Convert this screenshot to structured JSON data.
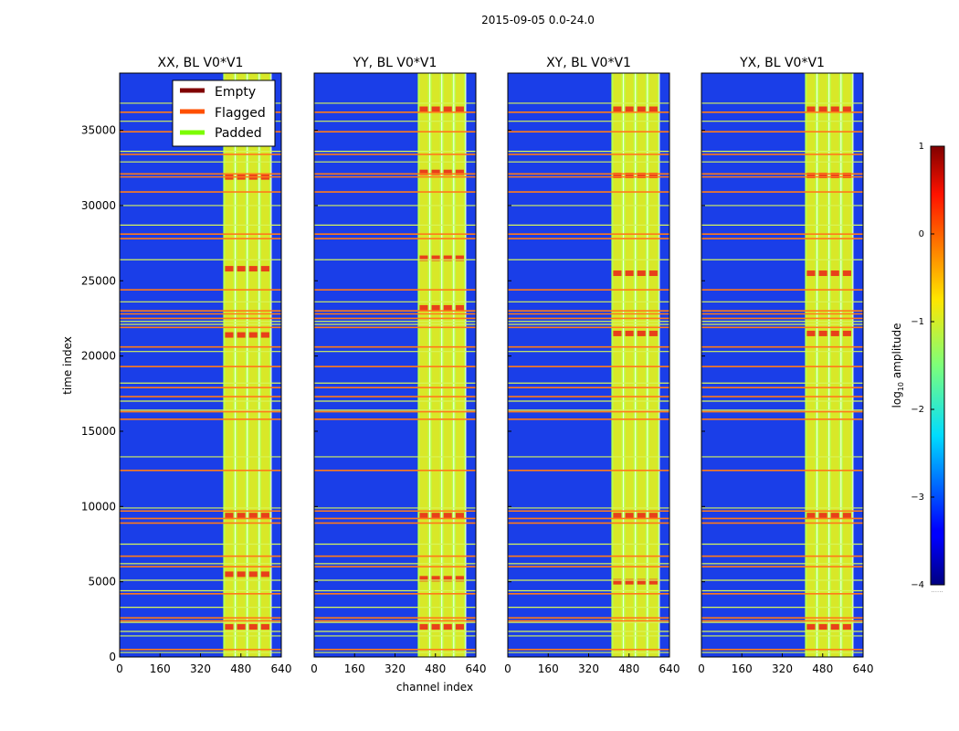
{
  "figure": {
    "suptitle": "2015-09-05 0.0-24.0",
    "xlabel": "channel index",
    "ylabel": "time index"
  },
  "legend": {
    "location": "top-right of first panel",
    "entries": [
      {
        "label": "Empty",
        "color": "#800000"
      },
      {
        "label": "Flagged",
        "color": "#ff5000"
      },
      {
        "label": "Padded",
        "color": "#7cfc00"
      }
    ]
  },
  "colorbar": {
    "label_prefix": "log",
    "label_sub": "10",
    "label_suffix": " amplitude",
    "min": -4,
    "max": 1,
    "ticks": [
      1,
      0,
      -1,
      -2,
      -3,
      -4
    ],
    "tick_labels": [
      "1",
      "0",
      "−1",
      "−2",
      "−3",
      "−4"
    ],
    "colormap": "jet",
    "under_text": "......"
  },
  "colors": {
    "background": "#1a3ee8",
    "band": "#b8ff4a",
    "band_hot": "#ffcc00",
    "flag": "#ff7a1a",
    "pad": "#d7f55a",
    "empty": "#8a1a10"
  },
  "chart_data": [
    {
      "type": "heatmap",
      "title": "XX, BL V0*V1",
      "xlabel": "",
      "ylabel": "time index",
      "xlim": [
        0,
        640
      ],
      "ylim": [
        0,
        38800
      ],
      "xticks": [
        0,
        160,
        320,
        480,
        640
      ],
      "yticks": [
        0,
        5000,
        10000,
        15000,
        20000,
        25000,
        30000,
        35000
      ],
      "show_ytick_labels": true,
      "signal_band": [
        410,
        600
      ],
      "flagged_rows": [
        500,
        2400,
        2600,
        4200,
        6000,
        6700,
        8900,
        9200,
        9700,
        12400,
        15800,
        16300,
        17300,
        17900,
        19300,
        20600,
        21900,
        22500,
        22800,
        23000,
        24400,
        27800,
        28100,
        30900,
        31900,
        32100,
        33400,
        34900,
        36200
      ],
      "padded_rows": [
        300,
        1400,
        1700,
        2300,
        3300,
        4400,
        5100,
        6200,
        7500,
        9900,
        13300,
        16400,
        17000,
        18200,
        20300,
        22100,
        22300,
        23600,
        26400,
        28700,
        30000,
        32900,
        33600,
        35600,
        36800
      ],
      "hot_rows": [
        2000,
        5500,
        9400,
        21400,
        25800,
        31900
      ]
    },
    {
      "type": "heatmap",
      "title": "YY, BL V0*V1",
      "xlabel": "channel index",
      "ylabel": "",
      "xlim": [
        0,
        640
      ],
      "ylim": [
        0,
        38800
      ],
      "xticks": [
        0,
        160,
        320,
        480,
        640
      ],
      "yticks": [
        0,
        5000,
        10000,
        15000,
        20000,
        25000,
        30000,
        35000
      ],
      "show_ytick_labels": false,
      "signal_band": [
        410,
        600
      ],
      "flagged_rows": [
        500,
        2400,
        2600,
        4200,
        6000,
        6700,
        8900,
        9200,
        9700,
        12400,
        15800,
        16300,
        17300,
        17900,
        19300,
        20600,
        21900,
        22500,
        22800,
        23000,
        24400,
        27800,
        28100,
        30900,
        31900,
        32100,
        33400,
        34900,
        36200
      ],
      "padded_rows": [
        300,
        1400,
        1700,
        2300,
        3300,
        4400,
        5100,
        6200,
        7500,
        9900,
        13300,
        16400,
        17000,
        18200,
        20300,
        22100,
        22300,
        23600,
        26400,
        28700,
        30000,
        32900,
        33600,
        35600,
        36800
      ],
      "hot_rows": [
        2000,
        5200,
        9400,
        23200,
        26500,
        32200,
        36400
      ]
    },
    {
      "type": "heatmap",
      "title": "XY, BL V0*V1",
      "xlabel": "",
      "ylabel": "",
      "xlim": [
        0,
        640
      ],
      "ylim": [
        0,
        38800
      ],
      "xticks": [
        0,
        160,
        320,
        480,
        640
      ],
      "yticks": [
        0,
        5000,
        10000,
        15000,
        20000,
        25000,
        30000,
        35000
      ],
      "show_ytick_labels": false,
      "signal_band": [
        410,
        600
      ],
      "flagged_rows": [
        500,
        2400,
        2600,
        4200,
        6000,
        6700,
        8900,
        9200,
        9700,
        12400,
        15800,
        16300,
        17300,
        17900,
        19300,
        20600,
        21900,
        22500,
        22800,
        23000,
        24400,
        27800,
        28100,
        30900,
        31900,
        32100,
        33400,
        34900,
        36200
      ],
      "padded_rows": [
        300,
        1400,
        1700,
        2300,
        3300,
        4400,
        5100,
        6200,
        7500,
        9900,
        13300,
        16400,
        17000,
        18200,
        20300,
        22100,
        22300,
        23600,
        26400,
        28700,
        30000,
        32900,
        33600,
        35600,
        36800
      ],
      "hot_rows": [
        5000,
        9400,
        21500,
        25500,
        32000,
        36400
      ]
    },
    {
      "type": "heatmap",
      "title": "YX, BL V0*V1",
      "xlabel": "",
      "ylabel": "",
      "xlim": [
        0,
        640
      ],
      "ylim": [
        0,
        38800
      ],
      "xticks": [
        0,
        160,
        320,
        480,
        640
      ],
      "yticks": [
        0,
        5000,
        10000,
        15000,
        20000,
        25000,
        30000,
        35000
      ],
      "show_ytick_labels": false,
      "signal_band": [
        410,
        600
      ],
      "flagged_rows": [
        500,
        2400,
        2600,
        4200,
        6000,
        6700,
        8900,
        9200,
        9700,
        12400,
        15800,
        16300,
        17300,
        17900,
        19300,
        20600,
        21900,
        22500,
        22800,
        23000,
        24400,
        27800,
        28100,
        30900,
        31900,
        32100,
        33400,
        34900,
        36200
      ],
      "padded_rows": [
        300,
        1400,
        1700,
        2300,
        3300,
        4400,
        5100,
        6200,
        7500,
        9900,
        13300,
        16400,
        17000,
        18200,
        20300,
        22100,
        22300,
        23600,
        26400,
        28700,
        30000,
        32900,
        33600,
        35600,
        36800
      ],
      "hot_rows": [
        2000,
        9400,
        21500,
        25500,
        32000,
        36400
      ]
    }
  ]
}
